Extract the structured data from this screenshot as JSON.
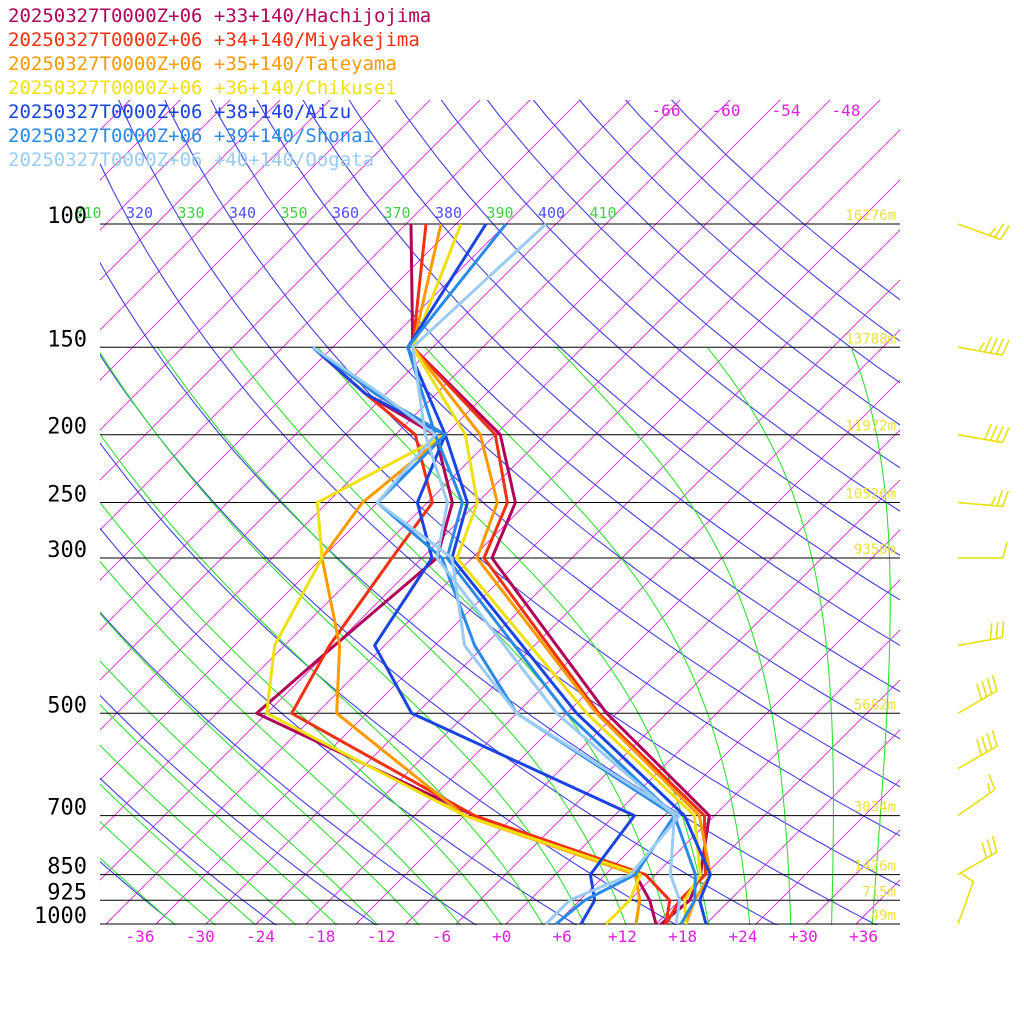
{
  "chart_data": {
    "type": "line",
    "title": "",
    "pressure_levels": [
      100,
      150,
      200,
      250,
      300,
      500,
      700,
      850,
      925,
      1000
    ],
    "height_labels": [
      {
        "p": 100,
        "text": "16276m"
      },
      {
        "p": 150,
        "text": "13788m"
      },
      {
        "p": 200,
        "text": "11972m"
      },
      {
        "p": 250,
        "text": "10526m"
      },
      {
        "p": 300,
        "text": "9350m"
      },
      {
        "p": 500,
        "text": "5682m"
      },
      {
        "p": 700,
        "text": "3034m"
      },
      {
        "p": 850,
        "text": "1426m"
      },
      {
        "p": 925,
        "text": "715m"
      },
      {
        "p": 1000,
        "text": "49m"
      }
    ],
    "x_ticks": [
      "-36",
      "-30",
      "-24",
      "-18",
      "-12",
      "-6",
      "+0",
      "+6",
      "+12",
      "+18",
      "+24",
      "+30",
      "+36"
    ],
    "x_tick_values": [
      -36,
      -30,
      -24,
      -18,
      -12,
      -6,
      0,
      6,
      12,
      18,
      24,
      30,
      36
    ],
    "upper_isotherm_labels": [
      "-66",
      "-60",
      "-54",
      "-48"
    ],
    "theta_labels": [
      "310",
      "320",
      "330",
      "340",
      "350",
      "360",
      "370",
      "380",
      "390",
      "400",
      "410"
    ],
    "series": [
      {
        "name": "20250327T0000Z+06 +33+140/Hachijojima",
        "color": "#b0005a",
        "temp": [
          [
            1000,
            15.5
          ],
          [
            925,
            16.0
          ],
          [
            850,
            14.5
          ],
          [
            700,
            9.5
          ],
          [
            500,
            -11.0
          ],
          [
            300,
            -38.0
          ],
          [
            250,
            -41.2
          ],
          [
            200,
            -49.5
          ],
          [
            150,
            -67.0
          ],
          [
            100,
            -79.5
          ]
        ],
        "dewp": [
          [
            1000,
            15.0
          ],
          [
            925,
            12.0
          ],
          [
            850,
            8.0
          ],
          [
            700,
            -14.0
          ],
          [
            500,
            -46.0
          ],
          [
            400,
            -45.0
          ],
          [
            300,
            -43.5
          ],
          [
            250,
            -47.5
          ],
          [
            200,
            -56.0
          ],
          [
            175,
            -67.0
          ],
          [
            150,
            -77.0
          ]
        ]
      },
      {
        "name": "20250327T0000Z+06 +34+140/Miyakejima",
        "color": "#f03010",
        "temp": [
          [
            1000,
            16.0
          ],
          [
            925,
            15.0
          ],
          [
            850,
            15.0
          ],
          [
            700,
            9.0
          ],
          [
            500,
            -11.8
          ],
          [
            300,
            -38.8
          ],
          [
            250,
            -42.0
          ],
          [
            200,
            -50.0
          ],
          [
            150,
            -67.0
          ],
          [
            100,
            -78.0
          ]
        ],
        "dewp": [
          [
            1000,
            16.0
          ],
          [
            925,
            14.0
          ],
          [
            850,
            9.0
          ],
          [
            700,
            -14.0
          ],
          [
            500,
            -42.5
          ],
          [
            400,
            -45.5
          ],
          [
            300,
            -48.0
          ],
          [
            250,
            -49.5
          ],
          [
            200,
            -58.0
          ],
          [
            175,
            -67.0
          ],
          [
            150,
            -77.0
          ]
        ]
      },
      {
        "name": "20250327T0000Z+06 +35+140/Tateyama",
        "color": "#ff9900",
        "temp": [
          [
            1000,
            18.0
          ],
          [
            925,
            16.5
          ],
          [
            850,
            15.5
          ],
          [
            700,
            8.5
          ],
          [
            500,
            -12.0
          ],
          [
            300,
            -39.5
          ],
          [
            250,
            -43.0
          ],
          [
            200,
            -51.5
          ],
          [
            150,
            -67.0
          ],
          [
            100,
            -76.5
          ]
        ],
        "dewp": [
          [
            1000,
            13.0
          ],
          [
            925,
            11.0
          ],
          [
            850,
            8.0
          ],
          [
            700,
            -15.0
          ],
          [
            500,
            -38.0
          ],
          [
            400,
            -44.5
          ],
          [
            300,
            -55.0
          ],
          [
            250,
            -56.5
          ],
          [
            200,
            -55.0
          ],
          [
            175,
            -66.0
          ],
          [
            150,
            -77.0
          ]
        ]
      },
      {
        "name": "20250327T0000Z+06 +36+140/Chikusei",
        "color": "#f0e010",
        "temp": [
          [
            1000,
            18.0
          ],
          [
            925,
            15.5
          ],
          [
            850,
            14.5
          ],
          [
            700,
            8.0
          ],
          [
            500,
            -13.0
          ],
          [
            300,
            -41.5
          ],
          [
            250,
            -45.0
          ],
          [
            200,
            -53.0
          ],
          [
            150,
            -67.0
          ],
          [
            100,
            -74.5
          ]
        ],
        "dewp": [
          [
            1000,
            10.0
          ],
          [
            925,
            10.0
          ],
          [
            850,
            8.5
          ],
          [
            700,
            -15.0
          ],
          [
            500,
            -45.0
          ],
          [
            400,
            -51.0
          ],
          [
            300,
            -55.0
          ],
          [
            250,
            -61.0
          ],
          [
            200,
            -55.0
          ],
          [
            175,
            -66.0
          ],
          [
            150,
            -77.0
          ]
        ]
      },
      {
        "name": "20250327T0000Z+06 +38+140/Aizu",
        "color": "#1a44e0",
        "temp": [
          [
            1000,
            20.0
          ],
          [
            925,
            17.0
          ],
          [
            850,
            15.5
          ],
          [
            700,
            7.0
          ],
          [
            500,
            -14.0
          ],
          [
            300,
            -42.0
          ],
          [
            250,
            -46.0
          ],
          [
            200,
            -55.0
          ],
          [
            150,
            -67.5
          ],
          [
            100,
            -72.0
          ]
        ],
        "dewp": [
          [
            1000,
            7.5
          ],
          [
            925,
            6.5
          ],
          [
            850,
            3.5
          ],
          [
            700,
            2.0
          ],
          [
            500,
            -30.5
          ],
          [
            400,
            -41.0
          ],
          [
            300,
            -44.0
          ],
          [
            250,
            -51.0
          ],
          [
            200,
            -55.0
          ],
          [
            175,
            -67.0
          ],
          [
            150,
            -77.0
          ]
        ]
      },
      {
        "name": "20250327T0000Z+06 +39+140/Shonai",
        "color": "#2a8ae8",
        "temp": [
          [
            1000,
            17.5
          ],
          [
            925,
            16.5
          ],
          [
            850,
            14.0
          ],
          [
            700,
            6.0
          ],
          [
            500,
            -15.0
          ],
          [
            300,
            -42.5
          ],
          [
            250,
            -46.5
          ],
          [
            200,
            -56.0
          ],
          [
            150,
            -67.5
          ],
          [
            100,
            -70.0
          ]
        ],
        "dewp": [
          [
            1000,
            5.0
          ],
          [
            925,
            5.5
          ],
          [
            850,
            8.0
          ],
          [
            700,
            6.0
          ],
          [
            500,
            -20.0
          ],
          [
            400,
            -31.0
          ],
          [
            300,
            -43.0
          ],
          [
            250,
            -55.0
          ],
          [
            200,
            -55.0
          ],
          [
            175,
            -66.0
          ],
          [
            150,
            -77.0
          ]
        ]
      },
      {
        "name": "20250327T0000Z+06 +40+140/Oogata",
        "color": "#9acbf4",
        "temp": [
          [
            1000,
            17.0
          ],
          [
            925,
            15.0
          ],
          [
            850,
            11.5
          ],
          [
            700,
            6.0
          ],
          [
            500,
            -16.0
          ],
          [
            300,
            -43.5
          ],
          [
            250,
            -48.0
          ],
          [
            200,
            -57.0
          ],
          [
            150,
            -67.0
          ],
          [
            100,
            -66.0
          ]
        ],
        "dewp": [
          [
            1000,
            4.0
          ],
          [
            925,
            4.0
          ],
          [
            850,
            7.5
          ],
          [
            700,
            6.5
          ],
          [
            500,
            -20.0
          ],
          [
            400,
            -32.0
          ],
          [
            300,
            -42.0
          ],
          [
            250,
            -55.0
          ],
          [
            200,
            -56.0
          ],
          [
            175,
            -65.5
          ],
          [
            150,
            -77.0
          ]
        ]
      }
    ],
    "wind_barbs": [
      {
        "p": 100,
        "speed": 25,
        "dir": 290
      },
      {
        "p": 150,
        "speed": 45,
        "dir": 280
      },
      {
        "p": 200,
        "speed": 40,
        "dir": 280
      },
      {
        "p": 250,
        "speed": 25,
        "dir": 275
      },
      {
        "p": 300,
        "speed": 10,
        "dir": 270
      },
      {
        "p": 400,
        "speed": 30,
        "dir": 260
      },
      {
        "p": 500,
        "speed": 40,
        "dir": 240
      },
      {
        "p": 600,
        "speed": 40,
        "dir": 240
      },
      {
        "p": 700,
        "speed": 15,
        "dir": 235
      },
      {
        "p": 850,
        "speed": 30,
        "dir": 240
      },
      {
        "p": 1000,
        "speed": 10,
        "dir": 200
      }
    ],
    "colors": {
      "isobar": "#000000",
      "isotherm": "#e020e0",
      "dry_adiabat": "#4040e0",
      "moist_adiabat": "#30e030",
      "theta_label_blue": "#5050ff",
      "theta_label_green": "#40d040",
      "height_label": "#e8e040",
      "wind_barb": "#e8e010"
    }
  }
}
